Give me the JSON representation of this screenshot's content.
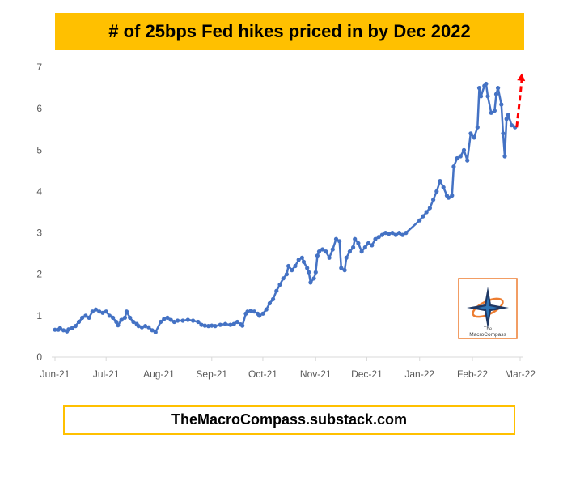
{
  "title": "# of 25bps Fed hikes priced in by Dec 2022",
  "footer": "TheMacroCompass.substack.com",
  "logo": {
    "line1": "The",
    "line2": "MacroCompass"
  },
  "colors": {
    "title_bg": "#ffc000",
    "line": "#4472c4",
    "arrow": "#ff0000",
    "axis_text": "#595959"
  },
  "chart_data": {
    "type": "line",
    "title": "# of 25bps Fed hikes priced in by Dec 2022",
    "xlabel": "",
    "ylabel": "",
    "ylim": [
      0,
      7
    ],
    "yticks": [
      0,
      1,
      2,
      3,
      4,
      5,
      6,
      7
    ],
    "xlim": [
      "2021-06-01",
      "2022-03-01"
    ],
    "xticks": [
      {
        "label": "Jun-21",
        "date": "2021-06-01"
      },
      {
        "label": "Jul-21",
        "date": "2021-07-01"
      },
      {
        "label": "Aug-21",
        "date": "2021-08-01"
      },
      {
        "label": "Sep-21",
        "date": "2021-09-01"
      },
      {
        "label": "Oct-21",
        "date": "2021-10-01"
      },
      {
        "label": "Nov-21",
        "date": "2021-11-01"
      },
      {
        "label": "Dec-21",
        "date": "2021-12-01"
      },
      {
        "label": "Jan-22",
        "date": "2022-01-01"
      },
      {
        "label": "Feb-22",
        "date": "2022-02-01"
      },
      {
        "label": "Mar-22",
        "date": "2022-03-01"
      }
    ],
    "grid": false,
    "series": [
      {
        "points": [
          [
            "2021-06-01",
            0.66
          ],
          [
            "2021-06-03",
            0.66
          ],
          [
            "2021-06-04",
            0.7
          ],
          [
            "2021-06-06",
            0.65
          ],
          [
            "2021-06-08",
            0.62
          ],
          [
            "2021-06-09",
            0.67
          ],
          [
            "2021-06-11",
            0.7
          ],
          [
            "2021-06-13",
            0.75
          ],
          [
            "2021-06-15",
            0.85
          ],
          [
            "2021-06-17",
            0.95
          ],
          [
            "2021-06-19",
            1.0
          ],
          [
            "2021-06-21",
            0.95
          ],
          [
            "2021-06-23",
            1.1
          ],
          [
            "2021-06-25",
            1.15
          ],
          [
            "2021-06-27",
            1.1
          ],
          [
            "2021-06-29",
            1.07
          ],
          [
            "2021-07-01",
            1.1
          ],
          [
            "2021-07-03",
            1.0
          ],
          [
            "2021-07-05",
            0.95
          ],
          [
            "2021-07-07",
            0.85
          ],
          [
            "2021-07-08",
            0.77
          ],
          [
            "2021-07-10",
            0.9
          ],
          [
            "2021-07-12",
            0.95
          ],
          [
            "2021-07-13",
            1.1
          ],
          [
            "2021-07-15",
            0.95
          ],
          [
            "2021-07-17",
            0.85
          ],
          [
            "2021-07-19",
            0.8
          ],
          [
            "2021-07-20",
            0.75
          ],
          [
            "2021-07-22",
            0.72
          ],
          [
            "2021-07-24",
            0.75
          ],
          [
            "2021-07-26",
            0.72
          ],
          [
            "2021-07-28",
            0.65
          ],
          [
            "2021-07-30",
            0.6
          ],
          [
            "2021-08-02",
            0.85
          ],
          [
            "2021-08-04",
            0.92
          ],
          [
            "2021-08-06",
            0.95
          ],
          [
            "2021-08-08",
            0.9
          ],
          [
            "2021-08-10",
            0.85
          ],
          [
            "2021-08-12",
            0.88
          ],
          [
            "2021-08-15",
            0.88
          ],
          [
            "2021-08-18",
            0.9
          ],
          [
            "2021-08-21",
            0.88
          ],
          [
            "2021-08-24",
            0.85
          ],
          [
            "2021-08-26",
            0.78
          ],
          [
            "2021-08-28",
            0.76
          ],
          [
            "2021-08-30",
            0.75
          ],
          [
            "2021-09-01",
            0.76
          ],
          [
            "2021-09-03",
            0.75
          ],
          [
            "2021-09-06",
            0.78
          ],
          [
            "2021-09-09",
            0.8
          ],
          [
            "2021-09-12",
            0.78
          ],
          [
            "2021-09-14",
            0.8
          ],
          [
            "2021-09-16",
            0.85
          ],
          [
            "2021-09-18",
            0.79
          ],
          [
            "2021-09-19",
            0.76
          ],
          [
            "2021-09-21",
            1.05
          ],
          [
            "2021-09-22",
            1.1
          ],
          [
            "2021-09-24",
            1.12
          ],
          [
            "2021-09-26",
            1.1
          ],
          [
            "2021-09-28",
            1.05
          ],
          [
            "2021-09-29",
            1.0
          ],
          [
            "2021-10-01",
            1.05
          ],
          [
            "2021-10-03",
            1.15
          ],
          [
            "2021-10-05",
            1.3
          ],
          [
            "2021-10-07",
            1.4
          ],
          [
            "2021-10-09",
            1.6
          ],
          [
            "2021-10-11",
            1.75
          ],
          [
            "2021-10-13",
            1.9
          ],
          [
            "2021-10-15",
            2.0
          ],
          [
            "2021-10-16",
            2.2
          ],
          [
            "2021-10-18",
            2.1
          ],
          [
            "2021-10-20",
            2.2
          ],
          [
            "2021-10-22",
            2.35
          ],
          [
            "2021-10-24",
            2.4
          ],
          [
            "2021-10-25",
            2.3
          ],
          [
            "2021-10-27",
            2.15
          ],
          [
            "2021-10-28",
            2.05
          ],
          [
            "2021-10-29",
            1.8
          ],
          [
            "2021-10-31",
            1.9
          ],
          [
            "2021-11-01",
            2.05
          ],
          [
            "2021-11-02",
            2.45
          ],
          [
            "2021-11-03",
            2.55
          ],
          [
            "2021-11-05",
            2.6
          ],
          [
            "2021-11-07",
            2.55
          ],
          [
            "2021-11-09",
            2.4
          ],
          [
            "2021-11-11",
            2.6
          ],
          [
            "2021-11-13",
            2.85
          ],
          [
            "2021-11-15",
            2.8
          ],
          [
            "2021-11-16",
            2.15
          ],
          [
            "2021-11-18",
            2.1
          ],
          [
            "2021-11-19",
            2.4
          ],
          [
            "2021-11-21",
            2.55
          ],
          [
            "2021-11-23",
            2.65
          ],
          [
            "2021-11-24",
            2.85
          ],
          [
            "2021-11-26",
            2.75
          ],
          [
            "2021-11-28",
            2.55
          ],
          [
            "2021-11-30",
            2.65
          ],
          [
            "2021-12-02",
            2.75
          ],
          [
            "2021-12-04",
            2.7
          ],
          [
            "2021-12-06",
            2.85
          ],
          [
            "2021-12-08",
            2.9
          ],
          [
            "2021-12-10",
            2.95
          ],
          [
            "2021-12-12",
            3.0
          ],
          [
            "2021-12-14",
            2.98
          ],
          [
            "2021-12-16",
            3.0
          ],
          [
            "2021-12-18",
            2.95
          ],
          [
            "2021-12-20",
            3.0
          ],
          [
            "2021-12-22",
            2.95
          ],
          [
            "2021-12-24",
            3.0
          ],
          [
            "2022-01-01",
            3.3
          ],
          [
            "2022-01-03",
            3.4
          ],
          [
            "2022-01-05",
            3.5
          ],
          [
            "2022-01-07",
            3.6
          ],
          [
            "2022-01-09",
            3.8
          ],
          [
            "2022-01-11",
            4.0
          ],
          [
            "2022-01-13",
            4.25
          ],
          [
            "2022-01-15",
            4.1
          ],
          [
            "2022-01-17",
            3.9
          ],
          [
            "2022-01-18",
            3.85
          ],
          [
            "2022-01-20",
            3.9
          ],
          [
            "2022-01-21",
            4.6
          ],
          [
            "2022-01-23",
            4.8
          ],
          [
            "2022-01-25",
            4.85
          ],
          [
            "2022-01-27",
            5.0
          ],
          [
            "2022-01-29",
            4.75
          ],
          [
            "2022-01-31",
            5.4
          ],
          [
            "2022-02-02",
            5.3
          ],
          [
            "2022-02-04",
            5.55
          ],
          [
            "2022-02-05",
            6.5
          ],
          [
            "2022-02-06",
            6.3
          ],
          [
            "2022-02-08",
            6.55
          ],
          [
            "2022-02-09",
            6.6
          ],
          [
            "2022-02-10",
            6.3
          ],
          [
            "2022-02-12",
            5.9
          ],
          [
            "2022-02-14",
            5.95
          ],
          [
            "2022-02-15",
            6.35
          ],
          [
            "2022-02-16",
            6.5
          ],
          [
            "2022-02-18",
            6.1
          ],
          [
            "2022-02-19",
            5.4
          ],
          [
            "2022-02-20",
            4.85
          ],
          [
            "2022-02-21",
            5.75
          ],
          [
            "2022-02-22",
            5.85
          ],
          [
            "2022-02-24",
            5.6
          ],
          [
            "2022-02-26",
            5.55
          ]
        ]
      }
    ],
    "annotation": {
      "type": "dashed-arrow",
      "color": "#ff0000",
      "from": [
        "2022-02-27",
        5.55
      ],
      "to": [
        "2022-03-02",
        6.85
      ]
    }
  }
}
